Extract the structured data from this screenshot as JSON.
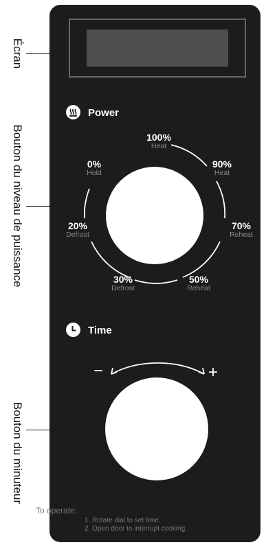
{
  "labels": {
    "screen": "Écran",
    "power_knob": "Bouton du niveau de puissance",
    "timer_knob": "Bouton du minuteur"
  },
  "power": {
    "title": "Power",
    "icon": "heat-waves-icon",
    "levels": [
      {
        "pct": "100%",
        "sub": "Heat"
      },
      {
        "pct": "90%",
        "sub": "Heat"
      },
      {
        "pct": "70%",
        "sub": "Reheat"
      },
      {
        "pct": "50%",
        "sub": "Reheat"
      },
      {
        "pct": "30%",
        "sub": "Defrost"
      },
      {
        "pct": "20%",
        "sub": "Defrost"
      },
      {
        "pct": "0%",
        "sub": "Hold"
      }
    ]
  },
  "time": {
    "title": "Time",
    "icon": "clock-icon",
    "minus": "−",
    "plus": "+"
  },
  "instructions": {
    "title": "To operate:",
    "lines": [
      "1. Rotate dial to set time.",
      "2. Open door to interrupt cooking."
    ]
  }
}
